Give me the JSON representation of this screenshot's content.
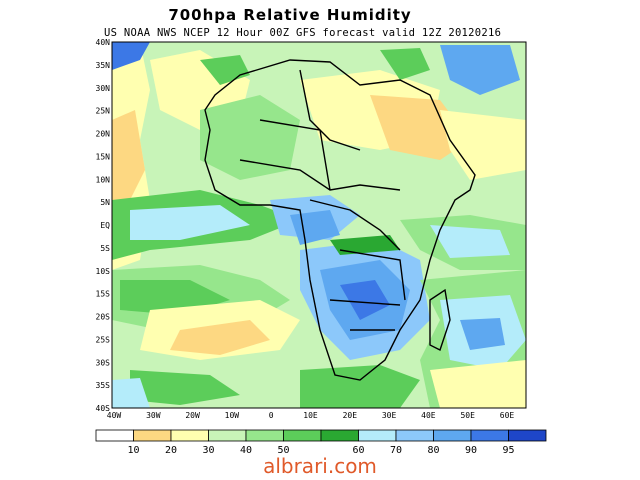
{
  "title": "700hpa Relative Humidity",
  "subtitle": "US NOAA NWS NCEP 12 Hour 00Z GFS forecast valid 12Z 20120216",
  "lat_labels": [
    "40N",
    "35N",
    "30N",
    "25N",
    "20N",
    "15N",
    "10N",
    "5N",
    "EQ",
    "5S",
    "10S",
    "15S",
    "20S",
    "25S",
    "30S",
    "35S",
    "40S"
  ],
  "lon_labels": [
    "40W",
    "30W",
    "20W",
    "10W",
    "0",
    "10E",
    "20E",
    "30E",
    "40E",
    "50E",
    "60E"
  ],
  "colorbar": {
    "colors": [
      "#ffffff",
      "#fdd882",
      "#ffffb0",
      "#c8f4b8",
      "#96e68c",
      "#5ccd5a",
      "#2aa832",
      "#b4ecfa",
      "#8cc8fa",
      "#5ea8f0",
      "#3c78e6",
      "#1e46c8"
    ],
    "labels": [
      "10",
      "20",
      "30",
      "40",
      "50",
      "60",
      "70",
      "80",
      "90",
      "95"
    ]
  },
  "footer": "albrari.com"
}
